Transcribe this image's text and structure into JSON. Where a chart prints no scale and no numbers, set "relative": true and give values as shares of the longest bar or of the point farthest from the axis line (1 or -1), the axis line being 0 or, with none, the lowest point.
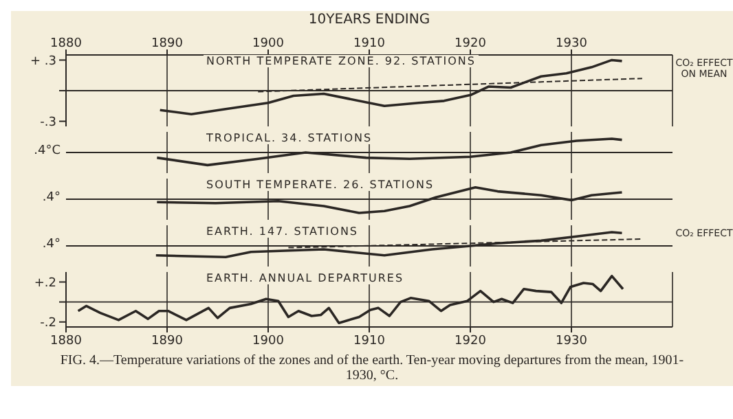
{
  "chart_data": [
    {
      "type": "line",
      "title": "NORTH TEMPERATE ZONE. 92. STATIONS",
      "xlabel": "10YEARS ENDING",
      "xlim": [
        1880,
        1940
      ],
      "xticks": [
        1880,
        1890,
        1900,
        1910,
        1920,
        1930
      ],
      "ylim": [
        -0.35,
        0.35
      ],
      "yticks": [
        {
          "value": 0.3,
          "label": "+ .3"
        },
        {
          "value": 0,
          "label": null
        },
        {
          "value": -0.3,
          "label": "-.3"
        }
      ],
      "grid": "x",
      "ref_lines": [
        {
          "axis": "y",
          "value": 0
        }
      ],
      "annotations": [
        "CO₂ EFFECT ON MEAN"
      ],
      "series": [
        {
          "color": "#2b2724",
          "x": [
            1889.3,
            1892.4,
            1895.8,
            1900,
            1902.5,
            1905.5,
            1908,
            1911.5,
            1914.9,
            1917.4,
            1920.1,
            1921.8,
            1924,
            1927,
            1929.5,
            1932,
            1934,
            1935
          ],
          "values": [
            -0.19,
            -0.23,
            -0.18,
            -0.12,
            -0.05,
            -0.03,
            -0.08,
            -0.15,
            -0.12,
            -0.1,
            -0.04,
            0.04,
            0.03,
            0.14,
            0.17,
            0.23,
            0.3,
            0.29
          ]
        },
        {
          "color": "#2b2724",
          "line_style": "dashed",
          "x": [
            1899,
            1937
          ],
          "values": [
            -0.01,
            0.12
          ]
        }
      ]
    },
    {
      "type": "line",
      "title": "TROPICAL. 34. STATIONS",
      "relative": true,
      "xlim": [
        1880,
        1940
      ],
      "xticks": [
        1880,
        1890,
        1900,
        1910,
        1920,
        1930
      ],
      "tick_labels": false,
      "ref_lines": [
        {
          "axis": "y",
          "value": 0
        },
        {
          "axis": "x",
          "value": 1890
        },
        {
          "axis": "x",
          "value": 1900
        },
        {
          "axis": "x",
          "value": 1910
        },
        {
          "axis": "x",
          "value": 1920
        },
        {
          "axis": "x",
          "value": 1930
        }
      ],
      "annotations": [
        ".4°C"
      ],
      "series": [
        {
          "color": "#2b2724",
          "x": [
            1889,
            1894,
            1899,
            1903.7,
            1909.7,
            1914,
            1920,
            1924,
            1927,
            1930.5,
            1934,
            1935
          ],
          "values": [
            -0.38,
            -0.92,
            -0.46,
            0,
            -0.38,
            -0.46,
            -0.31,
            0,
            0.54,
            0.85,
            1,
            0.92
          ]
        }
      ]
    },
    {
      "type": "line",
      "title": "SOUTH TEMPERATE. 26. STATIONS",
      "relative": true,
      "xlim": [
        1880,
        1940
      ],
      "xticks": [
        1880,
        1890,
        1900,
        1910,
        1920,
        1930
      ],
      "tick_labels": false,
      "ref_lines": [
        {
          "axis": "y",
          "value": 0
        },
        {
          "axis": "x",
          "value": 1890
        },
        {
          "axis": "x",
          "value": 1900
        },
        {
          "axis": "x",
          "value": 1910
        },
        {
          "axis": "x",
          "value": 1920
        },
        {
          "axis": "x",
          "value": 1930
        }
      ],
      "annotations": [
        ".4°"
      ],
      "series": [
        {
          "color": "#2b2724",
          "x": [
            1889,
            1894.8,
            1901,
            1905.5,
            1909,
            1911.5,
            1914,
            1916.6,
            1920.5,
            1922.7,
            1927,
            1930,
            1932,
            1935
          ],
          "values": [
            -0.21,
            -0.29,
            -0.14,
            -0.5,
            -1,
            -0.86,
            -0.5,
            0.14,
            0.86,
            0.57,
            0.29,
            -0.07,
            0.29,
            0.5
          ]
        }
      ]
    },
    {
      "type": "line",
      "title": "EARTH. 147. STATIONS",
      "relative": true,
      "xlim": [
        1880,
        1940
      ],
      "xticks": [
        1880,
        1890,
        1900,
        1910,
        1920,
        1930
      ],
      "tick_labels": false,
      "ref_lines": [
        {
          "axis": "y",
          "value": 0
        },
        {
          "axis": "x",
          "value": 1890
        },
        {
          "axis": "x",
          "value": 1900
        },
        {
          "axis": "x",
          "value": 1910
        },
        {
          "axis": "x",
          "value": 1920
        },
        {
          "axis": "x",
          "value": 1930
        }
      ],
      "annotations": [
        ".4°",
        "CO₂ EFFECT"
      ],
      "series": [
        {
          "color": "#2b2724",
          "x": [
            1888.9,
            1895.8,
            1898.3,
            1905.5,
            1911.5,
            1916.2,
            1920,
            1922.7,
            1927,
            1930.5,
            1934,
            1935
          ],
          "values": [
            -0.69,
            -0.81,
            -0.44,
            -0.25,
            -0.69,
            -0.25,
            0,
            0.19,
            0.38,
            0.69,
            1,
            0.94
          ]
        },
        {
          "color": "#2b2724",
          "line_style": "dashed",
          "x": [
            1902,
            1937
          ],
          "values": [
            -0.13,
            0.5
          ]
        }
      ]
    },
    {
      "type": "line",
      "title": "EARTH. ANNUAL DEPARTURES",
      "xlim": [
        1880,
        1940
      ],
      "xticks": [
        1880,
        1890,
        1900,
        1910,
        1920,
        1930
      ],
      "ylim": [
        -0.25,
        0.3
      ],
      "yticks": [
        {
          "value": 0.2,
          "label": "+.2"
        },
        {
          "value": 0,
          "label": null
        },
        {
          "value": -0.2,
          "label": "-.2"
        }
      ],
      "grid": "x",
      "ref_lines": [
        {
          "axis": "y",
          "value": 0
        }
      ],
      "annotations": [
        "FIG. 4.—Temperature variations of the zones and of the earth.  Ten-year moving departures from the mean, 1901-1930, °C."
      ],
      "series": [
        {
          "color": "#2b2724",
          "x": [
            1881.2,
            1882,
            1883.4,
            1885.2,
            1886.9,
            1888.1,
            1889.2,
            1890.1,
            1891.9,
            1894.1,
            1895,
            1896.2,
            1898.3,
            1899.8,
            1901,
            1902,
            1903,
            1904.3,
            1905.2,
            1906,
            1907,
            1909,
            1910.1,
            1910.9,
            1912,
            1913.1,
            1914.1,
            1915.9,
            1917.1,
            1918,
            1919.7,
            1921,
            1922.3,
            1923.1,
            1924.2,
            1925.3,
            1926.5,
            1928,
            1929,
            1929.9,
            1931.2,
            1932.1,
            1932.9,
            1934,
            1935.1
          ],
          "values": [
            -0.09,
            -0.04,
            -0.11,
            -0.18,
            -0.09,
            -0.17,
            -0.09,
            -0.09,
            -0.18,
            -0.06,
            -0.16,
            -0.06,
            -0.02,
            0.03,
            0.01,
            -0.15,
            -0.09,
            -0.14,
            -0.13,
            -0.06,
            -0.21,
            -0.15,
            -0.08,
            -0.06,
            -0.14,
            0,
            0.04,
            0.01,
            -0.09,
            -0.03,
            0.01,
            0.11,
            0,
            0.03,
            -0.01,
            0.13,
            0.11,
            0.1,
            -0.01,
            0.15,
            0.19,
            0.18,
            0.11,
            0.26,
            0.13
          ]
        }
      ]
    }
  ]
}
